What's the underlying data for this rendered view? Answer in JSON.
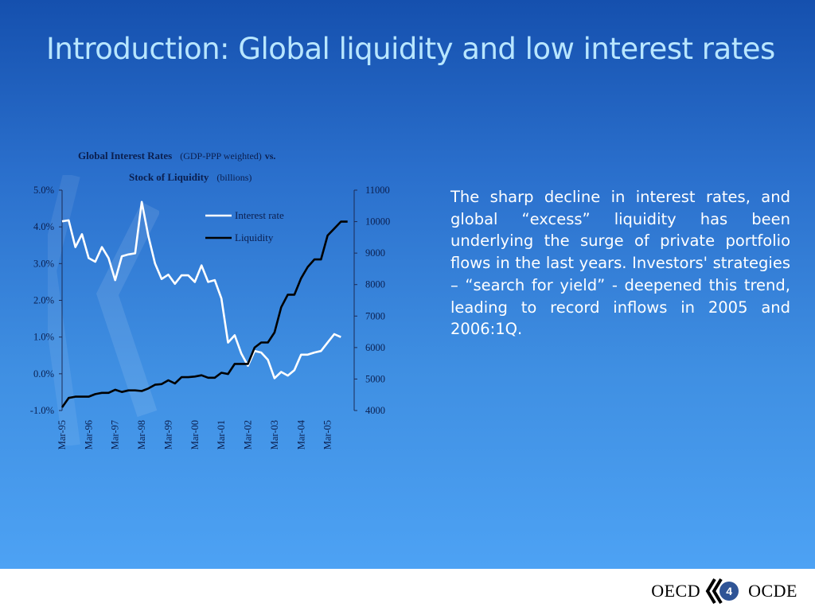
{
  "slide": {
    "title": "Introduction: Global liquidity and low interest rates",
    "body_text": "The sharp decline in interest rates, and global “excess” liquidity has been underlying the surge of private portfolio flows in the last years. Investors' strategies – “search for yield” - deepened this trend, leading to record inflows in 2005 and 2006:1Q.",
    "page_number": "4"
  },
  "footer": {
    "logo_left": "OECD",
    "logo_right": "OCDE"
  },
  "colors": {
    "background_top": "#1550ae",
    "background_bottom": "#4da2f4",
    "title_text": "#b8e6ff",
    "interest_rate_line": "#ffffff",
    "liquidity_line": "#000000",
    "axis_text": "#0b1f4f"
  },
  "chart_data": {
    "type": "line",
    "title_line1_bold": "Global Interest Rates",
    "title_line1_normal": "(GDP-PPP weighted)",
    "title_line1_vs": "vs.",
    "title_line2_bold": "Stock of Liquidity",
    "title_line2_normal": "(billions)",
    "x_tick_labels": [
      "Mar-95",
      "Mar-96",
      "Mar-97",
      "Mar-98",
      "Mar-99",
      "Mar-00",
      "Mar-01",
      "Mar-02",
      "Mar-03",
      "Mar-04",
      "Mar-05"
    ],
    "y_left": {
      "range": [
        -1.0,
        5.0
      ],
      "ticks": [
        -1.0,
        0.0,
        1.0,
        2.0,
        3.0,
        4.0,
        5.0
      ],
      "tick_labels": [
        "-1.0%",
        "0.0%",
        "1.0%",
        "2.0%",
        "3.0%",
        "4.0%",
        "5.0%"
      ]
    },
    "y_right": {
      "range": [
        4000,
        11000
      ],
      "ticks": [
        4000,
        5000,
        6000,
        7000,
        8000,
        9000,
        10000,
        11000
      ],
      "tick_labels": [
        "4000",
        "5000",
        "6000",
        "7000",
        "8000",
        "9000",
        "10000",
        "11000"
      ]
    },
    "legend_position": "top-right",
    "series": [
      {
        "name": "Interest rate",
        "axis": "left",
        "x": [
          1995.0,
          1995.25,
          1995.5,
          1995.75,
          1996.0,
          1996.25,
          1996.5,
          1996.75,
          1997.0,
          1997.25,
          1997.5,
          1997.75,
          1998.0,
          1998.25,
          1998.5,
          1998.75,
          1999.0,
          1999.25,
          1999.5,
          1999.75,
          2000.0,
          2000.25,
          2000.5,
          2000.75,
          2001.0,
          2001.25,
          2001.5,
          2001.75,
          2002.0,
          2002.25,
          2002.5,
          2002.75,
          2003.0,
          2003.25,
          2003.5,
          2003.75,
          2004.0,
          2004.25,
          2004.5,
          2004.75,
          2005.0,
          2005.25,
          2005.5
        ],
        "values": [
          4.15,
          4.18,
          3.45,
          3.8,
          3.15,
          3.05,
          3.45,
          3.15,
          2.55,
          3.2,
          3.25,
          3.28,
          4.68,
          3.75,
          3.0,
          2.58,
          2.7,
          2.45,
          2.68,
          2.68,
          2.5,
          2.95,
          2.5,
          2.55,
          2.05,
          0.85,
          1.05,
          0.55,
          0.22,
          0.62,
          0.58,
          0.38,
          -0.12,
          0.05,
          -0.05,
          0.1,
          0.52,
          0.52,
          0.58,
          0.62,
          0.85,
          1.08,
          1.0
        ]
      },
      {
        "name": "Liquidity",
        "axis": "right",
        "x": [
          1995.0,
          1995.25,
          1995.5,
          1995.75,
          1996.0,
          1996.25,
          1996.5,
          1996.75,
          1997.0,
          1997.25,
          1997.5,
          1997.75,
          1998.0,
          1998.25,
          1998.5,
          1998.75,
          1999.0,
          1999.25,
          1999.5,
          1999.75,
          2000.0,
          2000.25,
          2000.5,
          2000.75,
          2001.0,
          2001.25,
          2001.5,
          2001.75,
          2002.0,
          2002.25,
          2002.5,
          2002.75,
          2003.0,
          2003.25,
          2003.5,
          2003.75,
          2004.0,
          2004.25,
          2004.5,
          2004.75,
          2005.0,
          2005.25,
          2005.5,
          2005.75
        ],
        "values": [
          4100,
          4400,
          4440,
          4440,
          4440,
          4520,
          4560,
          4560,
          4660,
          4590,
          4640,
          4640,
          4620,
          4700,
          4820,
          4840,
          4960,
          4860,
          5060,
          5060,
          5080,
          5120,
          5040,
          5040,
          5200,
          5160,
          5480,
          5480,
          5480,
          6000,
          6160,
          6160,
          6480,
          7280,
          7680,
          7680,
          8200,
          8560,
          8800,
          8800,
          9560,
          9780,
          10000,
          10000
        ]
      }
    ]
  }
}
